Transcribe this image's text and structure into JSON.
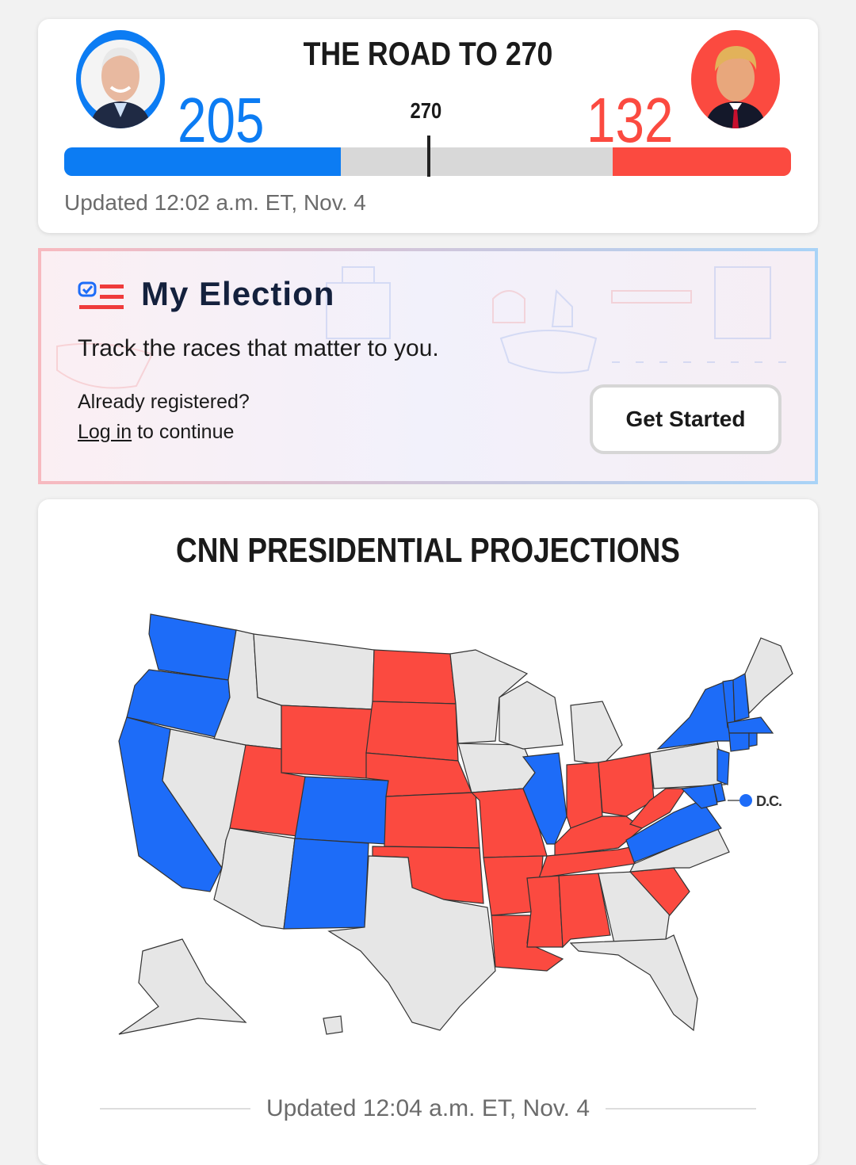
{
  "road": {
    "title": "THE ROAD TO 270",
    "threshold_label": "270",
    "threshold": 270,
    "total": 538,
    "dem": {
      "votes": "205",
      "value": 205,
      "color": "#0c7cf3",
      "avatar": "biden-portrait"
    },
    "rep": {
      "votes": "132",
      "value": 132,
      "color": "#fb4a40",
      "avatar": "trump-portrait"
    },
    "updated": "Updated 12:02 a.m. ET, Nov. 4"
  },
  "my_election": {
    "title": "My Election",
    "subtitle": "Track the races that matter to you.",
    "registered": "Already registered?",
    "login_link": "Log in",
    "login_rest": " to continue",
    "cta": "Get Started"
  },
  "projections": {
    "title": "CNN PRESIDENTIAL PROJECTIONS",
    "dc_label": "D.C.",
    "updated": "Updated 12:04 a.m. ET, Nov. 4",
    "colors": {
      "dem": "#1d6cf8",
      "rep": "#fb4a40",
      "none": "#e6e6e6"
    },
    "states": {
      "WA": "dem",
      "OR": "dem",
      "CA": "dem",
      "NV": "none",
      "ID": "none",
      "MT": "none",
      "WY": "rep",
      "UT": "rep",
      "CO": "dem",
      "AZ": "none",
      "NM": "dem",
      "ND": "rep",
      "SD": "rep",
      "NE": "rep",
      "KS": "rep",
      "OK": "rep",
      "TX": "none",
      "MN": "none",
      "IA": "none",
      "MO": "rep",
      "AR": "rep",
      "LA": "rep",
      "WI": "none",
      "IL": "dem",
      "MI": "none",
      "IN": "rep",
      "OH": "rep",
      "KY": "rep",
      "TN": "rep",
      "MS": "rep",
      "AL": "rep",
      "GA": "none",
      "FL": "none",
      "SC": "rep",
      "NC": "none",
      "VA": "dem",
      "WV": "rep",
      "PA": "none",
      "NY": "dem",
      "VT": "dem",
      "NH": "dem",
      "ME": "none",
      "MA": "dem",
      "CT": "dem",
      "RI": "dem",
      "NJ": "dem",
      "DE": "dem",
      "MD": "dem",
      "AK": "none",
      "HI": "none",
      "DC": "dem"
    }
  }
}
